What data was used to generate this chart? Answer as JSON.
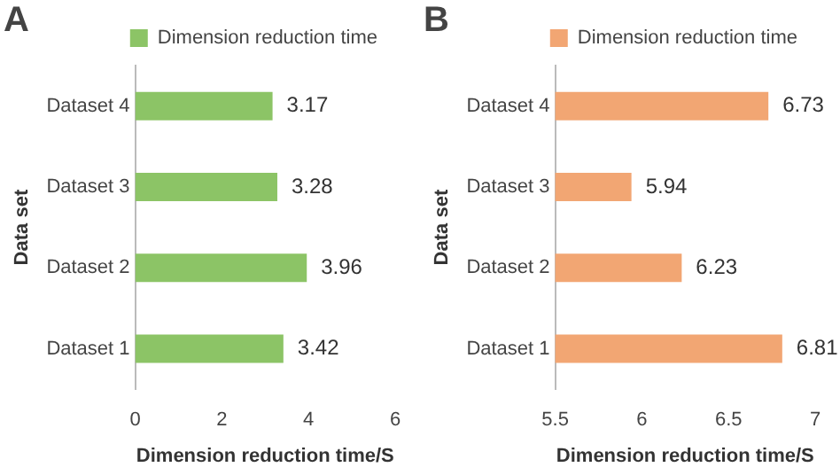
{
  "chart_data": [
    {
      "type": "bar",
      "title": "A",
      "orientation": "horizontal",
      "categories": [
        "Dataset 4",
        "Dataset 3",
        "Dataset 2",
        "Dataset 1"
      ],
      "series": [
        {
          "name": "Dimension reduction time",
          "color": "#8cc466",
          "values": [
            3.17,
            3.28,
            3.96,
            3.42
          ]
        }
      ],
      "xlim": [
        0,
        6
      ],
      "xticks": [
        0,
        2,
        4,
        6
      ],
      "xlabel": "Dimension reduction time/S",
      "ylabel": "Data set",
      "legend": "top",
      "data_labels": true,
      "grid": false
    },
    {
      "type": "bar",
      "title": "B",
      "orientation": "horizontal",
      "categories": [
        "Dataset 4",
        "Dataset 3",
        "Dataset 2",
        "Dataset 1"
      ],
      "series": [
        {
          "name": "Dimension reduction time",
          "color": "#f2a673",
          "values": [
            6.73,
            5.94,
            6.23,
            6.81
          ]
        }
      ],
      "xlim": [
        5.5,
        7
      ],
      "xticks": [
        5.5,
        6,
        6.5,
        7
      ],
      "xlabel": "Dimension reduction time/S",
      "ylabel": "Data set",
      "legend": "top",
      "data_labels": true,
      "grid": false
    }
  ]
}
